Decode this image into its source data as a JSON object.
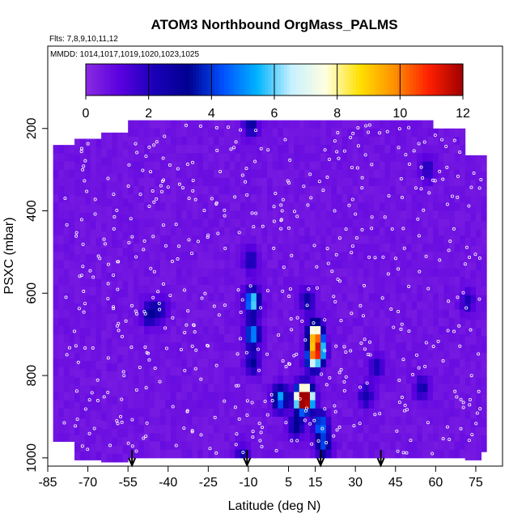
{
  "chart_data": {
    "type": "heatmap",
    "title": "ATOM3 Northbound OrgMass_PALMS",
    "flights_label": "Flts: 7,8,9,10,11,12",
    "dates_label": "MMDD: 1014,1017,1019,1020,1023,1025",
    "xlabel": "Latitude (deg N)",
    "ylabel": "PSXC (mbar)",
    "xlim": [
      -85,
      85
    ],
    "ylim": [
      1020,
      0
    ],
    "x_ticks": [
      -85,
      -70,
      -55,
      -40,
      -25,
      -10,
      5,
      15,
      30,
      45,
      60,
      75
    ],
    "y_ticks": [
      200,
      400,
      600,
      800,
      1000
    ],
    "colorbar": {
      "min": 0,
      "max": 12,
      "ticks": [
        0,
        2,
        4,
        6,
        8,
        10,
        12
      ],
      "colors": [
        "#8a2be2",
        "#5a00e0",
        "#1a00b8",
        "#000090",
        "#0050ff",
        "#00b4ff",
        "#c8f0ff",
        "#ffffe0",
        "#ffe000",
        "#ff9000",
        "#ff2000",
        "#a00000"
      ]
    },
    "background_value": 0.6,
    "data_extent": {
      "lat_min": -85,
      "lat_max": 79,
      "p_top": 170,
      "p_bottom": 1000
    },
    "hotspots": [
      {
        "lat": -8.5,
        "p": 620,
        "value": 6.0
      },
      {
        "lat": -8.5,
        "p": 700,
        "value": 5.0
      },
      {
        "lat": -8.5,
        "p": 770,
        "value": 2.5
      },
      {
        "lat": -9,
        "p": 520,
        "value": 2.0
      },
      {
        "lat": -47,
        "p": 650,
        "value": 2.5
      },
      {
        "lat": -43,
        "p": 640,
        "value": 1.8
      },
      {
        "lat": -12,
        "p": 1000,
        "value": 2.0
      },
      {
        "lat": -9,
        "p": 190,
        "value": 2.5
      },
      {
        "lat": 10,
        "p": 855,
        "value": 11.0
      },
      {
        "lat": 12,
        "p": 855,
        "value": 9.0
      },
      {
        "lat": 2,
        "p": 855,
        "value": 5.0
      },
      {
        "lat": 15,
        "p": 700,
        "value": 9.0
      },
      {
        "lat": 16,
        "p": 740,
        "value": 8.5
      },
      {
        "lat": 14,
        "p": 760,
        "value": 5.5
      },
      {
        "lat": 17,
        "p": 920,
        "value": 4.5
      },
      {
        "lat": 18,
        "p": 970,
        "value": 3.5
      },
      {
        "lat": 8,
        "p": 920,
        "value": 3.0
      },
      {
        "lat": 12,
        "p": 620,
        "value": 2.2
      },
      {
        "lat": 34,
        "p": 850,
        "value": 2.0
      },
      {
        "lat": 38,
        "p": 780,
        "value": 1.8
      },
      {
        "lat": 55,
        "p": 830,
        "value": 2.0
      },
      {
        "lat": 57,
        "p": 300,
        "value": 1.5
      },
      {
        "lat": 72,
        "p": 620,
        "value": 1.6
      }
    ],
    "markers": [
      -53.5,
      -10.5,
      17,
      39.5
    ]
  }
}
